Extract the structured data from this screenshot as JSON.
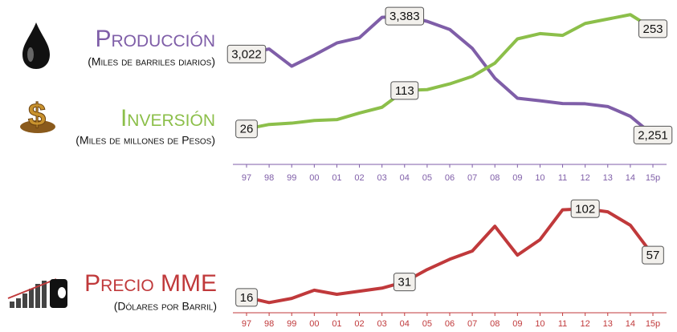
{
  "chart_data": [
    {
      "type": "line",
      "categories": [
        "97",
        "98",
        "99",
        "00",
        "01",
        "02",
        "03",
        "04",
        "05",
        "06",
        "07",
        "08",
        "09",
        "10",
        "11",
        "12",
        "13",
        "14",
        "15p"
      ],
      "axis_color": "#7f5ea8",
      "series": [
        {
          "name": "Producción",
          "unit": "(Miles de barriles diarios)",
          "color": "#7f5ea8",
          "ylim": [
            2200,
            3460
          ],
          "values": [
            3022,
            3070,
            2906,
            3012,
            3127,
            3177,
            3371,
            3383,
            3333,
            3256,
            3076,
            2792,
            2601,
            2577,
            2550,
            2548,
            2522,
            2429,
            2251
          ],
          "value_labels": [
            "3,022",
            null,
            null,
            null,
            null,
            null,
            null,
            "3,383",
            null,
            null,
            null,
            null,
            null,
            null,
            null,
            null,
            null,
            null,
            "2,251"
          ]
        },
        {
          "name": "Inversión",
          "unit": "(Miles de millones de Pesos)",
          "color": "#8cbf4a",
          "ylim": [
            0,
            300
          ],
          "values": [
            26,
            36,
            39,
            45,
            47,
            62,
            75,
            113,
            115,
            128,
            145,
            175,
            230,
            242,
            238,
            265,
            275,
            285,
            253
          ],
          "value_labels": [
            "26",
            null,
            null,
            null,
            null,
            null,
            null,
            "113",
            null,
            null,
            null,
            null,
            null,
            null,
            null,
            null,
            null,
            null,
            "253"
          ]
        }
      ]
    },
    {
      "type": "line",
      "categories": [
        "97",
        "98",
        "99",
        "00",
        "01",
        "02",
        "03",
        "04",
        "05",
        "06",
        "07",
        "08",
        "09",
        "10",
        "11",
        "12",
        "13",
        "14",
        "15p"
      ],
      "axis_color": "#c0393b",
      "series": [
        {
          "name": "Precio MME",
          "unit": "(Dólares por Barril)",
          "color": "#c0393b",
          "ylim": [
            5,
            110
          ],
          "values": [
            16,
            11,
            15,
            23,
            19,
            22,
            25,
            31,
            43,
            53,
            61,
            85,
            57,
            72,
            101,
            102,
            99,
            86,
            57
          ],
          "value_labels": [
            "16",
            null,
            null,
            null,
            null,
            null,
            null,
            "31",
            null,
            null,
            null,
            null,
            null,
            null,
            null,
            "102",
            null,
            null,
            "57"
          ]
        }
      ]
    }
  ]
}
